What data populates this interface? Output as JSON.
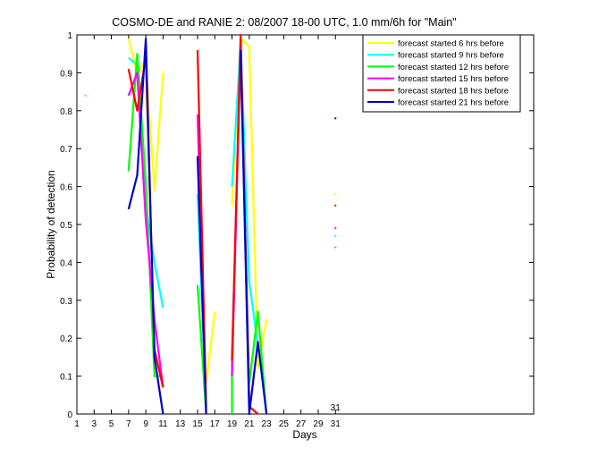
{
  "chart_data": {
    "type": "line",
    "title": "COSMO-DE and RANIE 2: 08/2007 18-00 UTC, 1.0 mm/6h for \"Main\"",
    "xlabel": "Days",
    "ylabel": "Probability of detection",
    "xlim": [
      1,
      54
    ],
    "ylim": [
      0,
      1
    ],
    "x_tick_labels": [
      "1",
      "3",
      "5",
      "7",
      "9",
      "11",
      "13",
      "15",
      "17",
      "19",
      "21",
      "23",
      "25",
      "27",
      "29",
      "31"
    ],
    "x_tick_values": [
      1,
      3,
      5,
      7,
      9,
      11,
      13,
      15,
      17,
      19,
      21,
      23,
      25,
      27,
      29,
      31
    ],
    "extra_x_tick": {
      "value": 31,
      "label": "31"
    },
    "y_ticks": [
      0,
      0.1,
      0.2,
      0.3,
      0.4,
      0.5,
      0.6,
      0.7,
      0.8,
      0.9,
      1
    ],
    "y_tick_labels": [
      "0",
      "0.1",
      "0.2",
      "0.3",
      "0.4",
      "0.5",
      "0.6",
      "0.7",
      "0.8",
      "0.9",
      "1"
    ],
    "legend_position": "top-right",
    "series": [
      {
        "name": "forecast started 6 hrs before",
        "color": "#ffff00",
        "segments": [
          [
            [
              7,
              0.99
            ],
            [
              8,
              0.9
            ],
            [
              9,
              0.93
            ],
            [
              10,
              0.59
            ],
            [
              11,
              0.9
            ]
          ],
          [
            [
              16,
              0.08
            ],
            [
              17,
              0.27
            ]
          ],
          [
            [
              19,
              0.55
            ],
            [
              20,
              0.99
            ],
            [
              21,
              0.97
            ],
            [
              22,
              0.12
            ],
            [
              23,
              0.25
            ]
          ]
        ],
        "points": [
          [
            31,
            0.58
          ]
        ]
      },
      {
        "name": "forecast started 9 hrs before",
        "color": "#00ffff",
        "segments": [
          [
            [
              7,
              0.94
            ],
            [
              8,
              0.92
            ],
            [
              9,
              0.55
            ],
            [
              10,
              0.4
            ],
            [
              11,
              0.28
            ]
          ],
          [
            [
              15,
              0.58
            ],
            [
              16,
              0.03
            ]
          ],
          [
            [
              19,
              0.6
            ],
            [
              20,
              0.98
            ],
            [
              21,
              0.35
            ],
            [
              22,
              0.18
            ]
          ]
        ],
        "points": [
          [
            2,
            0.84
          ],
          [
            31,
            0.47
          ]
        ]
      },
      {
        "name": "forecast started 12 hrs before",
        "color": "#00ff00",
        "segments": [
          [
            [
              7,
              0.64
            ],
            [
              8,
              0.95
            ],
            [
              9,
              0.61
            ],
            [
              10,
              0.1
            ],
            [
              11,
              0.1
            ]
          ],
          [
            [
              15,
              0.34
            ],
            [
              16,
              0.0
            ]
          ],
          [
            [
              19,
              0.0
            ],
            [
              19,
              0.15
            ],
            [
              20,
              0.95
            ],
            [
              21,
              0.08
            ],
            [
              22,
              0.27
            ],
            [
              23,
              0.0
            ]
          ]
        ],
        "points": [
          [
            31,
            0.44
          ]
        ]
      },
      {
        "name": "forecast started 15 hrs before",
        "color": "#ff00ff",
        "segments": [
          [
            [
              7,
              0.84
            ],
            [
              8,
              0.9
            ],
            [
              9,
              0.51
            ],
            [
              10,
              0.25
            ],
            [
              11,
              0.07
            ]
          ],
          [
            [
              15,
              0.79
            ],
            [
              16,
              0.01
            ]
          ],
          [
            [
              19,
              0.1
            ],
            [
              20,
              0.98
            ],
            [
              21,
              0.04
            ]
          ]
        ],
        "points": [
          [
            31,
            0.49
          ]
        ]
      },
      {
        "name": "forecast started 18 hrs before",
        "color": "#ff0000",
        "segments": [
          [
            [
              7,
              0.91
            ],
            [
              8,
              0.8
            ],
            [
              9,
              0.94
            ],
            [
              10,
              0.17
            ],
            [
              11,
              0.07
            ]
          ],
          [
            [
              15,
              0.96
            ],
            [
              16,
              0.02
            ]
          ],
          [
            [
              19,
              0.14
            ],
            [
              20,
              1.0
            ],
            [
              21,
              0.02
            ],
            [
              22,
              0.0
            ]
          ]
        ],
        "points": [
          [
            31,
            0.55
          ]
        ]
      },
      {
        "name": "forecast started 21 hrs before",
        "color": "#0000cc",
        "segments": [
          [
            [
              7,
              0.54
            ],
            [
              8,
              0.63
            ],
            [
              9,
              0.99
            ],
            [
              10,
              0.15
            ],
            [
              11,
              0.0
            ]
          ],
          [
            [
              15,
              0.68
            ],
            [
              16,
              0.0
            ]
          ],
          [
            [
              20,
              0.96
            ],
            [
              21,
              0.0
            ],
            [
              22,
              0.19
            ],
            [
              23,
              0.0
            ]
          ]
        ],
        "points": [
          [
            31,
            0.78
          ]
        ]
      }
    ]
  }
}
